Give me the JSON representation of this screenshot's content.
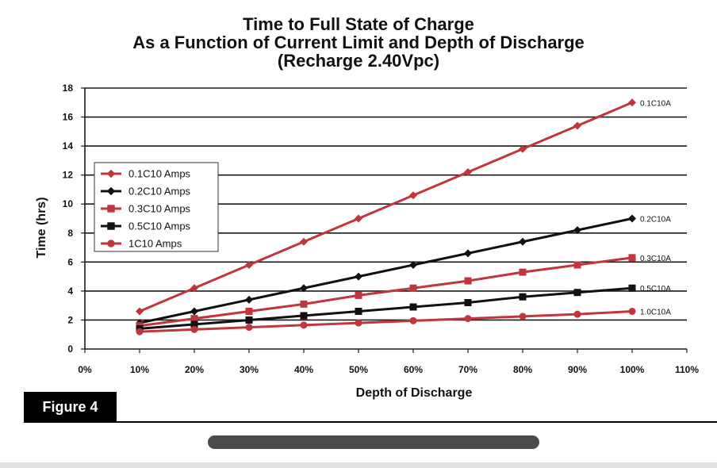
{
  "chart_data": {
    "type": "line",
    "title": [
      "Time to Full State of Charge",
      "As a Function of Current Limit and Depth of Discharge",
      "(Recharge 2.40Vpc)"
    ],
    "xlabel": "Depth of Discharge",
    "ylabel": "Time (hrs)",
    "xlim": [
      0,
      110
    ],
    "ylim": [
      0,
      18
    ],
    "x_ticks": [
      0,
      10,
      20,
      30,
      40,
      50,
      60,
      70,
      80,
      90,
      100,
      110
    ],
    "x_tick_labels": [
      "0%",
      "10%",
      "20%",
      "30%",
      "40%",
      "50%",
      "60%",
      "70%",
      "80%",
      "90%",
      "100%",
      "110%"
    ],
    "y_ticks": [
      0,
      2,
      4,
      6,
      8,
      10,
      12,
      14,
      16,
      18
    ],
    "y_tick_labels": [
      "0",
      "2",
      "4",
      "6",
      "8",
      "10",
      "12",
      "14",
      "16",
      "18"
    ],
    "grid": "horizontal",
    "legend_position": "upper-left",
    "x": [
      10,
      20,
      30,
      40,
      50,
      60,
      70,
      80,
      90,
      100
    ],
    "series": [
      {
        "name": "0.1C10 Amps",
        "end_label": "0.1C10A",
        "marker": "diamond",
        "color": "#c1353f",
        "values": [
          2.6,
          4.2,
          5.8,
          7.4,
          9.0,
          10.6,
          12.2,
          13.8,
          15.4,
          17.0
        ]
      },
      {
        "name": "0.2C10 Amps",
        "end_label": "0.2C10A",
        "marker": "diamond",
        "color": "#111111",
        "values": [
          1.8,
          2.6,
          3.4,
          4.2,
          5.0,
          5.8,
          6.6,
          7.4,
          8.2,
          9.0
        ]
      },
      {
        "name": "0.3C10 Amps",
        "end_label": "0.3C10A",
        "marker": "square",
        "color": "#c1353f",
        "values": [
          1.6,
          2.1,
          2.6,
          3.1,
          3.7,
          4.2,
          4.7,
          5.3,
          5.8,
          6.3
        ]
      },
      {
        "name": "0.5C10 Amps",
        "end_label": "0.5C10A",
        "marker": "square",
        "color": "#111111",
        "values": [
          1.4,
          1.7,
          2.0,
          2.3,
          2.6,
          2.9,
          3.2,
          3.6,
          3.9,
          4.2
        ]
      },
      {
        "name": "1C10 Amps",
        "end_label": "1.0C10A",
        "marker": "circle",
        "color": "#c1353f",
        "values": [
          1.2,
          1.35,
          1.5,
          1.65,
          1.8,
          1.95,
          2.1,
          2.25,
          2.4,
          2.6
        ]
      }
    ]
  },
  "figure_label": "Figure 4"
}
